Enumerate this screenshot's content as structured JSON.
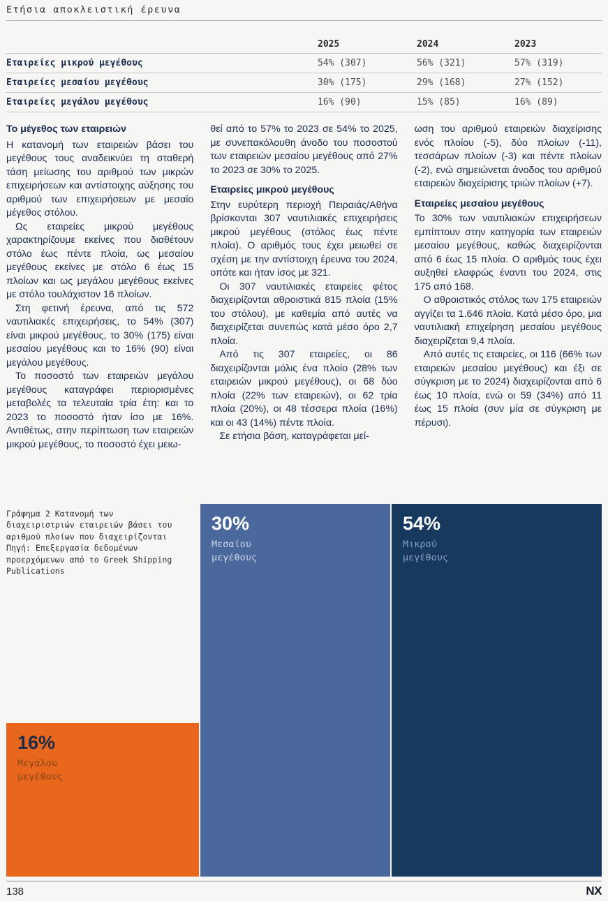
{
  "header": {
    "title": "Ετήσια αποκλειστική έρευνα"
  },
  "table": {
    "columns": [
      "2025",
      "2024",
      "2023"
    ],
    "rows": [
      {
        "label": "Εταιρείες μικρού μεγέθους",
        "values": [
          "54% (307)",
          "56% (321)",
          "57% (319)"
        ]
      },
      {
        "label": "Εταιρείες μεσαίου μεγέθους",
        "values": [
          "30% (175)",
          "29% (168)",
          "27% (152)"
        ]
      },
      {
        "label": "Εταιρείες μεγάλου μεγέθους",
        "values": [
          "16% (90)",
          "15% (85)",
          "16% (89)"
        ]
      }
    ]
  },
  "article": {
    "col1": {
      "heading": "Το μέγεθος των εταιρειών",
      "p1": "Η κατανομή των εταιρειών βάσει του μεγέθους τους αναδεικνύει τη σταθερή τάση μείωσης του αριθμού των μικρών επιχειρήσεων και αντίστοιχης αύξησης του αριθμού των επιχειρήσεων με μεσαίο μέγεθος στόλου.",
      "p2": "Ως εταιρείες μικρού μεγέθους χαρακτηρίζουμε εκείνες που διαθέτουν στόλο έως πέντε πλοία, ως μεσαίου μεγέθους εκείνες με στόλο 6 έως 15 πλοίων και ως μεγάλου μεγέθους εκείνες με στόλο τουλάχιστον 16 πλοίων.",
      "p3": "Στη φετινή έρευνα, από τις 572 ναυτιλιακές επιχειρήσεις, το 54% (307) είναι μικρού μεγέθους, το 30% (175) είναι μεσαίου μεγέθους και το 16% (90) είναι μεγάλου μεγέθους.",
      "p4": "Το ποσοστό των εταιρειών μεγάλου μεγέθους καταγράφει περιορισμένες μεταβολές τα τελευταία τρία έτη: και το 2023 το ποσοστό ήταν ίσο με 16%. Αντιθέτως, στην περίπτωση των εταιρειών μικρού μεγέθους, το ποσοστό έχει μειω-"
    },
    "col2": {
      "p1": "θεί από το 57% το 2023 σε 54% το 2025, με συνεπακόλουθη άνοδο του ποσοστού των εταιρειών μεσαίου μεγέθους από 27% το 2023 σε 30% το 2025.",
      "heading": "Εταιρείες μικρού μεγέθους",
      "p2": "Στην ευρύτερη περιοχή Πειραιάς/Αθήνα βρίσκονται 307 ναυτιλιακές επιχειρήσεις μικρού μεγέθους (στόλος έως πέντε πλοία). Ο αριθμός τους έχει μειωθεί σε σχέση με την αντίστοιχη έρευνα του 2024, οπότε και ήταν ίσος με 321.",
      "p3": "Οι 307 ναυτιλιακές εταιρείες φέτος διαχειρίζονται αθροιστικά 815 πλοία (15% του στόλου), με καθεμία από αυτές να διαχειρίζεται συνεπώς κατά μέσο όρο 2,7 πλοία.",
      "p4": "Από τις 307 εταιρείες, οι 86 διαχειρίζονται μόλις ένα πλοίο (28% των εταιρειών μικρού μεγέθους), οι 68 δύο πλοία (22% των εταιρειών), οι 62 τρία πλοία (20%), οι 48 τέσσερα πλοία (16%) και οι 43 (14%) πέντε πλοία.",
      "p5": "Σε ετήσια βάση, καταγράφεται μεί-"
    },
    "col3": {
      "p1": "ωση του αριθμού εταιρειών διαχείρισης ενός πλοίου (-5), δύο πλοίων (-11), τεσσάρων πλοίων (-3) και πέντε πλοίων (-2), ενώ σημειώνεται άνοδος του αριθμού εταιρειών διαχείρισης τριών πλοίων (+7).",
      "heading": "Εταιρείες μεσαίου μεγέθους",
      "p2": "Το 30% των ναυτιλιακών επιχειρήσεων εμπίπτουν στην κατηγορία των εταιρειών μεσαίου μεγέθους, καθώς διαχειρίζονται από 6 έως 15 πλοία. Ο αριθμός τους έχει αυξηθεί ελαφρώς έναντι του 2024, στις 175 από 168.",
      "p3": "Ο αθροιστικός στόλος των 175 εταιρειών αγγίζει τα 1.646 πλοία. Κατά μέσο όρο, μια ναυτιλιακή επιχείρηση μεσαίου μεγέθους διαχειρίζεται 9,4 πλοία.",
      "p4": "Από αυτές τις εταιρείες, οι 116 (66% των εταιρειών μεσαίου μεγέθους) και έξι σε σύγκριση με το 2024) διαχειρίζονται από 6 έως 10 πλοία, ενώ οι 59 (34%) από 11 έως 15 πλοία (συν μία σε σύγκριση με πέρυσι)."
    }
  },
  "chart": {
    "caption_line1": "Γράφημα 2 Κατανομή των διαχειριστριών εταιρειών βάσει του αριθμού πλοίων που διαχειρίζονται",
    "caption_line2": "Πηγή: Επεξεργασία δεδομένων προερχόμενων από το Greek Shipping Publications",
    "blocks": {
      "medium": {
        "pct": "30%",
        "label": "Μεσαίου\nμεγέθους",
        "color": "#4a689b",
        "pct_color": "#ffffff",
        "label_color": "#c7d3e8"
      },
      "small": {
        "pct": "54%",
        "label": "Μικρού\nμεγέθους",
        "color": "#17395e",
        "pct_color": "#ffffff",
        "label_color": "#8ba1c4"
      },
      "large": {
        "pct": "16%",
        "label": "Μεγάλου\nμεγέθους",
        "color": "#e8671d",
        "pct_color": "#1c2b4a",
        "label_color": "#8a4619"
      }
    }
  },
  "chart_data": {
    "type": "treemap",
    "title": "Γράφημα 2 Κατανομή των διαχειριστριών εταιρειών βάσει του αριθμού πλοίων που διαχειρίζονται",
    "source": "Πηγή: Επεξεργασία δεδομένων προερχόμενων από το Greek Shipping Publications",
    "categories": [
      "Μικρού μεγέθους",
      "Μεσαίου μεγέθους",
      "Μεγάλου μεγέθους"
    ],
    "values": [
      54,
      30,
      16
    ],
    "counts": [
      307,
      175,
      90
    ],
    "colors": [
      "#17395e",
      "#4a689b",
      "#e8671d"
    ]
  },
  "footer": {
    "page_number": "138",
    "logo": "NX"
  }
}
